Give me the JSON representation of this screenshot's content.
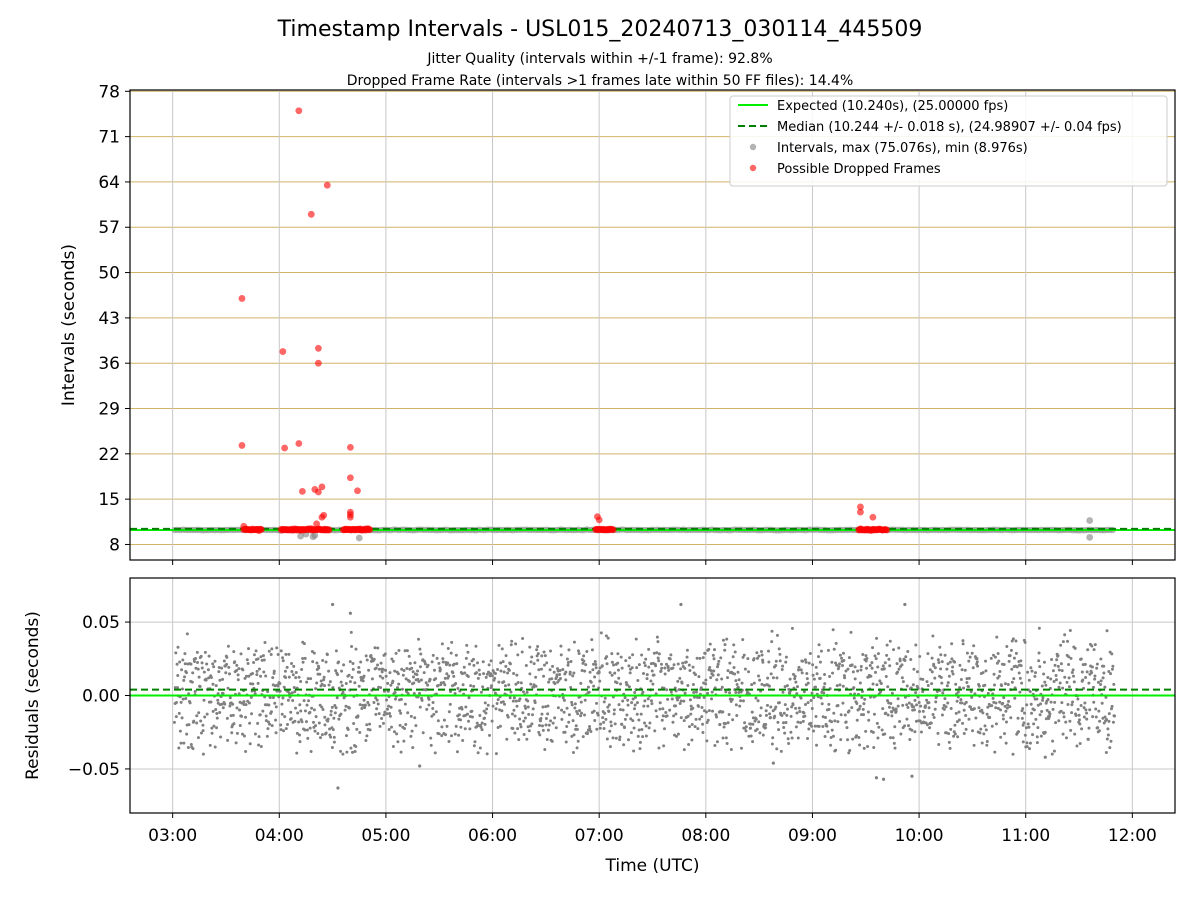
{
  "title": "Timestamp Intervals - USL015_20240713_030114_445509",
  "subtitle_lines": [
    "Jitter Quality (intervals within +/-1 frame): 92.8%",
    "Dropped Frame Rate (intervals >1 frames late within 50 FF files): 14.4%"
  ],
  "colors": {
    "expected": "#00ee00",
    "median": "#008000",
    "intervals": "#808080",
    "dropped": "#ff0000",
    "top_grid": "#d2b468",
    "grid": "#c8c8c8"
  },
  "chart_data": [
    {
      "type": "scatter",
      "panel": "intervals",
      "xlabel": "",
      "ylabel": "Intervals (seconds)",
      "xlim": [
        "02:36",
        "12:24"
      ],
      "ylim": [
        5.6,
        78.2
      ],
      "yticks": [
        8,
        15,
        22,
        29,
        36,
        43,
        50,
        57,
        64,
        71,
        78
      ],
      "xticks": [
        "03:00",
        "04:00",
        "05:00",
        "06:00",
        "07:00",
        "08:00",
        "09:00",
        "10:00",
        "11:00",
        "12:00"
      ],
      "grid": true,
      "legend_position": "top-right",
      "legend": [
        "Expected (10.240s), (25.00000 fps)",
        "Median (10.244 +/- 0.018 s), (24.98907 +/- 0.04 fps)",
        "Intervals, max (75.076s), min (8.976s)",
        "Possible Dropped Frames"
      ],
      "expected_line": 10.24,
      "median_line": 10.244,
      "series": [
        {
          "name": "Intervals, max (75.076s), min (8.976s)",
          "baseline": {
            "x_start": "03:01",
            "x_end": "11:50",
            "y": 10.24
          },
          "points": [
            {
              "x": "04:12",
              "y": 9.3
            },
            {
              "x": "04:15",
              "y": 9.6
            },
            {
              "x": "04:19",
              "y": 9.2
            },
            {
              "x": "04:20",
              "y": 9.4
            },
            {
              "x": "04:45",
              "y": 9.0
            },
            {
              "x": "11:36",
              "y": 11.7
            },
            {
              "x": "11:36",
              "y": 9.1
            }
          ]
        },
        {
          "name": "Possible Dropped Frames",
          "clusters": [
            {
              "x_start": "03:40",
              "x_end": "03:50",
              "y": 10.3
            },
            {
              "x_start": "04:01",
              "x_end": "04:28",
              "y": 10.3
            },
            {
              "x_start": "04:36",
              "x_end": "04:51",
              "y": 10.3
            },
            {
              "x_start": "06:58",
              "x_end": "07:08",
              "y": 10.3
            },
            {
              "x_start": "09:26",
              "x_end": "09:42",
              "y": 10.3
            }
          ],
          "points": [
            {
              "x": "03:39",
              "y": 46.0
            },
            {
              "x": "03:39",
              "y": 23.3
            },
            {
              "x": "03:40",
              "y": 10.8
            },
            {
              "x": "04:02",
              "y": 37.8
            },
            {
              "x": "04:03",
              "y": 22.9
            },
            {
              "x": "04:11",
              "y": 75.0
            },
            {
              "x": "04:11",
              "y": 23.6
            },
            {
              "x": "04:13",
              "y": 16.2
            },
            {
              "x": "04:18",
              "y": 59.0
            },
            {
              "x": "04:20",
              "y": 16.5
            },
            {
              "x": "04:21",
              "y": 11.2
            },
            {
              "x": "04:22",
              "y": 38.3
            },
            {
              "x": "04:22",
              "y": 36.0
            },
            {
              "x": "04:22",
              "y": 16.1
            },
            {
              "x": "04:24",
              "y": 16.9
            },
            {
              "x": "04:24",
              "y": 12.2
            },
            {
              "x": "04:25",
              "y": 12.5
            },
            {
              "x": "04:27",
              "y": 63.5
            },
            {
              "x": "04:40",
              "y": 23.0
            },
            {
              "x": "04:40",
              "y": 18.3
            },
            {
              "x": "04:40",
              "y": 13.0
            },
            {
              "x": "04:40",
              "y": 12.6
            },
            {
              "x": "04:40",
              "y": 12.2
            },
            {
              "x": "04:44",
              "y": 16.3
            },
            {
              "x": "06:59",
              "y": 12.3
            },
            {
              "x": "07:00",
              "y": 11.8
            },
            {
              "x": "09:27",
              "y": 13.8
            },
            {
              "x": "09:27",
              "y": 13.0
            },
            {
              "x": "09:34",
              "y": 12.2
            }
          ]
        }
      ]
    },
    {
      "type": "scatter",
      "panel": "residuals",
      "xlabel": "Time (UTC)",
      "ylabel": "Residuals (seconds)",
      "xlim": [
        "02:36",
        "12:24"
      ],
      "ylim": [
        -0.08,
        0.08
      ],
      "yticks": [
        -0.05,
        0.0,
        0.05
      ],
      "ytick_labels": [
        "−0.05",
        "0.00",
        "0.05"
      ],
      "xticks": [
        "03:00",
        "04:00",
        "05:00",
        "06:00",
        "07:00",
        "08:00",
        "09:00",
        "10:00",
        "11:00",
        "12:00"
      ],
      "grid": true,
      "expected_line": 0.0,
      "median_line": 0.004,
      "series": [
        {
          "name": "",
          "x_start": "03:01",
          "x_end": "11:50",
          "levels": [
            0.02,
            0.0,
            -0.02
          ],
          "spread": 0.01,
          "outliers": [
            {
              "x": "04:30",
              "y": 0.062
            },
            {
              "x": "04:33",
              "y": -0.063
            },
            {
              "x": "05:19",
              "y": -0.048
            },
            {
              "x": "07:46",
              "y": 0.062
            },
            {
              "x": "08:38",
              "y": -0.046
            },
            {
              "x": "09:36",
              "y": -0.056
            },
            {
              "x": "09:52",
              "y": 0.062
            },
            {
              "x": "09:56",
              "y": -0.055
            },
            {
              "x": "04:40",
              "y": 0.056
            },
            {
              "x": "09:40",
              "y": -0.057
            },
            {
              "x": "11:11",
              "y": -0.042
            }
          ]
        }
      ]
    }
  ]
}
